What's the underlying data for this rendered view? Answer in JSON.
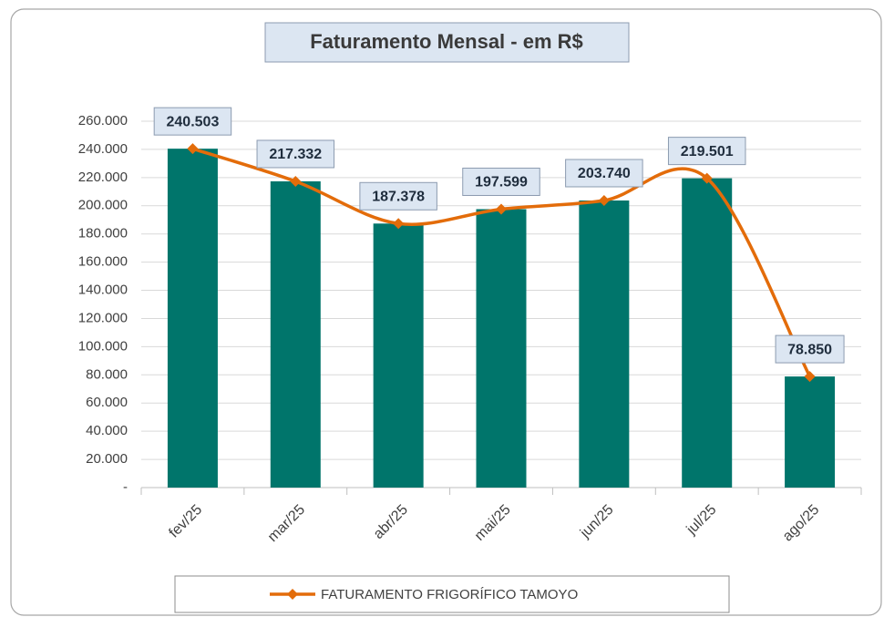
{
  "chart_data": {
    "type": "bar-line",
    "title": "Faturamento Mensal - em R$",
    "categories": [
      "fev/25",
      "mar/25",
      "abr/25",
      "mai/25",
      "jun/25",
      "jul/25",
      "ago/25"
    ],
    "series": [
      {
        "type": "bar",
        "color": "#00756b",
        "values": [
          240503,
          217332,
          187378,
          197599,
          203740,
          219501,
          78850
        ]
      },
      {
        "type": "line",
        "name": "FATURAMENTO FRIGORÍFICO TAMOYO",
        "color": "#e36c0a",
        "smooth": true,
        "values": [
          240503,
          217332,
          187378,
          197599,
          203740,
          219501,
          78850
        ],
        "value_labels": [
          "240.503",
          "217.332",
          "187.378",
          "197.599",
          "203.740",
          "219.501",
          "78.850"
        ]
      }
    ],
    "ylim": [
      0,
      260000
    ],
    "yticks": [
      {
        "value": 0,
        "label": "-"
      },
      {
        "value": 20000,
        "label": "20.000"
      },
      {
        "value": 40000,
        "label": "40.000"
      },
      {
        "value": 60000,
        "label": "60.000"
      },
      {
        "value": 80000,
        "label": "80.000"
      },
      {
        "value": 100000,
        "label": "100.000"
      },
      {
        "value": 120000,
        "label": "120.000"
      },
      {
        "value": 140000,
        "label": "140.000"
      },
      {
        "value": 160000,
        "label": "160.000"
      },
      {
        "value": 180000,
        "label": "180.000"
      },
      {
        "value": 200000,
        "label": "200.000"
      },
      {
        "value": 220000,
        "label": "220.000"
      },
      {
        "value": 240000,
        "label": "240.000"
      },
      {
        "value": 260000,
        "label": "260.000"
      }
    ],
    "grid": true,
    "legend": "bottom"
  }
}
